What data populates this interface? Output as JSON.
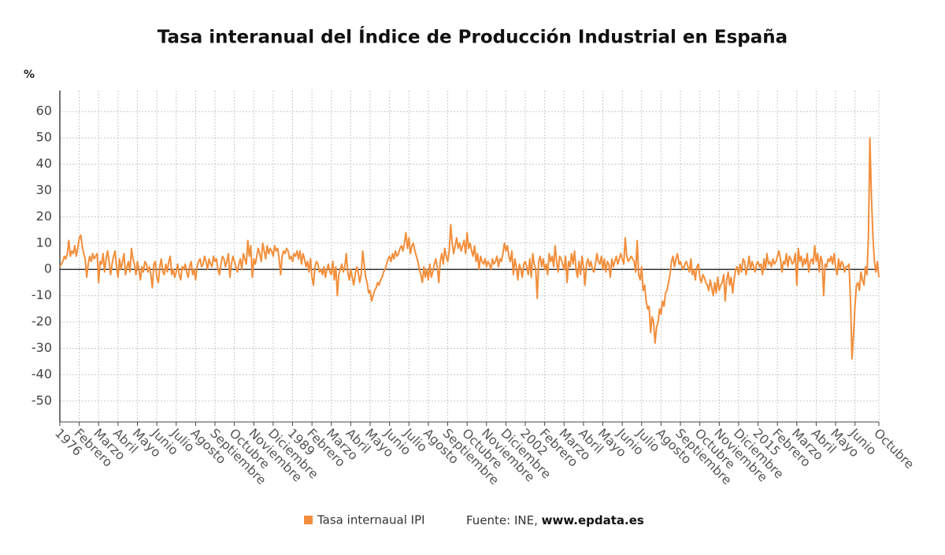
{
  "chart_data": {
    "type": "line",
    "title": "Tasa interanual del Índice de Producción Industrial en España",
    "y_unit": "%",
    "source_label": "Fuente: INE,",
    "source_site": "www.epdata.es",
    "ylim": [
      -58,
      68
    ],
    "yticks": [
      -50,
      -40,
      -30,
      -20,
      -10,
      0,
      10,
      20,
      30,
      40,
      50,
      60
    ],
    "grid": true,
    "legend": "bottom",
    "categories": [
      "1976",
      null,
      null,
      null,
      null,
      null,
      null,
      null,
      null,
      null,
      null,
      null,
      null,
      "Febrero",
      null,
      null,
      null,
      null,
      null,
      null,
      null,
      null,
      null,
      null,
      null,
      null,
      "Marzo",
      null,
      null,
      null,
      null,
      null,
      null,
      null,
      null,
      null,
      null,
      null,
      null,
      "Abril",
      null,
      null,
      null,
      null,
      null,
      null,
      null,
      null,
      null,
      null,
      null,
      null,
      "Mayo",
      null,
      null,
      null,
      null,
      null,
      null,
      null,
      null,
      null,
      null,
      null,
      null,
      "Junio",
      null,
      null,
      null,
      null,
      null,
      null,
      null,
      null,
      null,
      null,
      null,
      null,
      "Julio",
      null,
      null,
      null,
      null,
      null,
      null,
      null,
      null,
      null,
      null,
      null,
      null,
      "Agosto",
      null,
      null,
      null,
      null,
      null,
      null,
      null,
      null,
      null,
      null,
      null,
      null,
      "Septiembre",
      null,
      null,
      null,
      null,
      null,
      null,
      null,
      null,
      null,
      null,
      null,
      null,
      "Octubre",
      null,
      null,
      null,
      null,
      null,
      null,
      null,
      null,
      null,
      null,
      null,
      null,
      "Noviembre",
      null,
      null,
      null,
      null,
      null,
      null,
      null,
      null,
      null,
      null,
      null,
      null,
      "Diciembre",
      null,
      null,
      null,
      null,
      null,
      null,
      null,
      null,
      null,
      null,
      null,
      null,
      "1989",
      null,
      null,
      null,
      null,
      null,
      null,
      null,
      null,
      null,
      null,
      null,
      null,
      "Febrero",
      null,
      null,
      null,
      null,
      null,
      null,
      null,
      null,
      null,
      null,
      null,
      null,
      "Marzo",
      null,
      null,
      null,
      null,
      null,
      null,
      null,
      null,
      null,
      null,
      null,
      null,
      "Abril",
      null,
      null,
      null,
      null,
      null,
      null,
      null,
      null,
      null,
      null,
      null,
      null,
      "Mayo",
      null,
      null,
      null,
      null,
      null,
      null,
      null,
      null,
      null,
      null,
      null,
      null,
      "Junio",
      null,
      null,
      null,
      null,
      null,
      null,
      null,
      null,
      null,
      null,
      null,
      null,
      "Julio",
      null,
      null,
      null,
      null,
      null,
      null,
      null,
      null,
      null,
      null,
      null,
      null,
      "Agosto",
      null,
      null,
      null,
      null,
      null,
      null,
      null,
      null,
      null,
      null,
      null,
      null,
      "Septiembre",
      null,
      null,
      null,
      null,
      null,
      null,
      null,
      null,
      null,
      null,
      null,
      null,
      "Octubre",
      null,
      null,
      null,
      null,
      null,
      null,
      null,
      null,
      null,
      null,
      null,
      null,
      "Noviembre",
      null,
      null,
      null,
      null,
      null,
      null,
      null,
      null,
      null,
      null,
      null,
      null,
      "Diciembre",
      null,
      null,
      null,
      null,
      null,
      null,
      null,
      null,
      null,
      null,
      null,
      null,
      "2002",
      null,
      null,
      null,
      null,
      null,
      null,
      null,
      null,
      null,
      null,
      null,
      null,
      "Febrero",
      null,
      null,
      null,
      null,
      null,
      null,
      null,
      null,
      null,
      null,
      null,
      null,
      "Marzo",
      null,
      null,
      null,
      null,
      null,
      null,
      null,
      null,
      null,
      null,
      null,
      null,
      "Abril",
      null,
      null,
      null,
      null,
      null,
      null,
      null,
      null,
      null,
      null,
      null,
      null,
      "Mayo",
      null,
      null,
      null,
      null,
      null,
      null,
      null,
      null,
      null,
      null,
      null,
      null,
      "Junio",
      null,
      null,
      null,
      null,
      null,
      null,
      null,
      null,
      null,
      null,
      null,
      null,
      "Julio",
      null,
      null,
      null,
      null,
      null,
      null,
      null,
      null,
      null,
      null,
      null,
      null,
      "Agosto",
      null,
      null,
      null,
      null,
      null,
      null,
      null,
      null,
      null,
      null,
      null,
      null,
      "Septiembre",
      null,
      null,
      null,
      null,
      null,
      null,
      null,
      null,
      null,
      null,
      null,
      null,
      "Octubre",
      null,
      null,
      null,
      null,
      null,
      null,
      null,
      null,
      null,
      null,
      null,
      null,
      "Noviembre",
      null,
      null,
      null,
      null,
      null,
      null,
      null,
      null,
      null,
      null,
      null,
      null,
      "Diciembre",
      null,
      null,
      null,
      null,
      null,
      null,
      null,
      null,
      null,
      null,
      null,
      null,
      "2015",
      null,
      null,
      null,
      null,
      null,
      null,
      null,
      null,
      null,
      null,
      null,
      null,
      "Febrero",
      null,
      null,
      null,
      null,
      null,
      null,
      null,
      null,
      null,
      null,
      null,
      null,
      "Marzo",
      null,
      null,
      null,
      null,
      null,
      null,
      null,
      null,
      null,
      null,
      null,
      null,
      "Abril",
      null,
      null,
      null,
      null,
      null,
      null,
      null,
      null,
      null,
      null,
      null,
      null,
      "Mayo",
      null,
      null,
      null,
      null,
      null,
      null,
      null,
      null,
      null,
      null,
      null,
      null,
      "Junio",
      null,
      null,
      null,
      null,
      null,
      null,
      null,
      null,
      null,
      null,
      null,
      null,
      null,
      null,
      null,
      "Octubre"
    ],
    "series": [
      {
        "name": "Tasa internaual IPI",
        "color": "#f28e3b",
        "values": [
          1,
          2,
          3,
          5,
          4,
          6,
          11,
          5,
          7,
          6,
          9,
          5,
          8,
          12,
          13,
          9,
          6,
          4,
          -3,
          2,
          5,
          3,
          6,
          4,
          5,
          6,
          -5,
          3,
          2,
          6,
          -1,
          4,
          7,
          3,
          -2,
          2,
          5,
          7,
          1,
          -3,
          4,
          0,
          3,
          6,
          -2,
          1,
          3,
          -1,
          8,
          4,
          2,
          -2,
          3,
          0,
          -4,
          1,
          -1,
          3,
          2,
          -1,
          1,
          -2,
          -7,
          2,
          3,
          -3,
          -5,
          1,
          4,
          -1,
          -2,
          2,
          -1,
          3,
          5,
          -2,
          0,
          -3,
          -1,
          2,
          -2,
          -4,
          1,
          0,
          2,
          -1,
          -3,
          1,
          3,
          -2,
          0,
          -4,
          1,
          3,
          4,
          1,
          2,
          5,
          3,
          0,
          4,
          2,
          1,
          5,
          3,
          4,
          0,
          -2,
          2,
          5,
          4,
          1,
          3,
          6,
          -3,
          2,
          5,
          3,
          1,
          -1,
          2,
          4,
          0,
          6,
          4,
          2,
          11,
          5,
          9,
          -3,
          4,
          2,
          5,
          8,
          6,
          3,
          10,
          7,
          4,
          9,
          6,
          8,
          7,
          5,
          9,
          7,
          8,
          4,
          -2,
          5,
          7,
          6,
          8,
          7,
          4,
          5,
          3,
          6,
          5,
          7,
          4,
          7,
          2,
          6,
          4,
          1,
          3,
          -1,
          4,
          -3,
          -6,
          1,
          3,
          2,
          -1,
          0,
          -2,
          1,
          -3,
          0,
          2,
          -1,
          -2,
          3,
          -4,
          1,
          -10,
          -2,
          0,
          2,
          -1,
          1,
          6,
          -1,
          -4,
          0,
          -3,
          -6,
          -2,
          1,
          -1,
          -5,
          -2,
          7,
          2,
          -3,
          -5,
          -9,
          -8,
          -12,
          -10,
          -8,
          -7,
          -5,
          -6,
          -4,
          -3,
          -1,
          0,
          2,
          4,
          5,
          3,
          6,
          4,
          7,
          5,
          6,
          8,
          9,
          7,
          10,
          14,
          8,
          12,
          6,
          9,
          10,
          7,
          5,
          3,
          0,
          -2,
          -5,
          1,
          -3,
          0,
          -4,
          2,
          -3,
          -1,
          2,
          4,
          1,
          -5,
          3,
          6,
          2,
          8,
          5,
          3,
          7,
          17,
          10,
          6,
          9,
          12,
          8,
          10,
          7,
          9,
          11,
          6,
          14,
          8,
          10,
          7,
          5,
          9,
          3,
          6,
          0,
          5,
          3,
          2,
          4,
          1,
          3,
          2,
          0,
          4,
          2,
          3,
          5,
          1,
          4,
          3,
          6,
          10,
          7,
          9,
          5,
          3,
          7,
          -2,
          4,
          1,
          -4,
          2,
          0,
          -3,
          2,
          3,
          1,
          -2,
          4,
          -3,
          6,
          2,
          0,
          -11,
          3,
          5,
          1,
          4,
          0,
          2,
          -2,
          6,
          3,
          5,
          1,
          9,
          3,
          -1,
          5,
          4,
          2,
          0,
          5,
          -5,
          3,
          1,
          6,
          2,
          7,
          0,
          -3,
          3,
          -2,
          5,
          1,
          -6,
          2,
          4,
          1,
          3,
          0,
          -1,
          2,
          6,
          3,
          2,
          5,
          0,
          4,
          -1,
          3,
          2,
          -3,
          4,
          1,
          3,
          5,
          2,
          4,
          6,
          4,
          2,
          12,
          5,
          3,
          4,
          5,
          4,
          3,
          -1,
          11,
          -2,
          -4,
          1,
          -8,
          -6,
          -12,
          -15,
          -14,
          -24,
          -18,
          -20,
          -28,
          -22,
          -20,
          -15,
          -17,
          -12,
          -14,
          -9,
          -8,
          -5,
          -2,
          3,
          5,
          1,
          4,
          6,
          2,
          3,
          1,
          0,
          2,
          3,
          1,
          -1,
          4,
          -2,
          0,
          -4,
          1,
          2,
          -3,
          -5,
          -2,
          -3,
          -5,
          -6,
          -8,
          -4,
          -7,
          -10,
          -5,
          -9,
          -3,
          -8,
          -6,
          -5,
          -2,
          -12,
          -4,
          -1,
          -6,
          -3,
          -9,
          -4,
          0,
          1,
          -2,
          2,
          -1,
          4,
          3,
          -2,
          1,
          5,
          0,
          3,
          1,
          -1,
          2,
          3,
          1,
          2,
          -2,
          4,
          0,
          6,
          2,
          3,
          1,
          4,
          2,
          3,
          5,
          7,
          4,
          -1,
          3,
          2,
          6,
          1,
          5,
          4,
          2,
          3,
          6,
          -6,
          8,
          3,
          5,
          1,
          4,
          2,
          6,
          -1,
          3,
          4,
          2,
          9,
          3,
          6,
          -1,
          5,
          3,
          -10,
          2,
          1,
          4,
          3,
          5,
          2,
          6,
          1,
          -2,
          4,
          0,
          3,
          2,
          -1,
          1,
          1,
          2,
          -12,
          -34,
          -25,
          -14,
          -6,
          -5,
          -8,
          -1,
          -4,
          -6,
          1,
          -2,
          12,
          50,
          28,
          13,
          3,
          -1,
          3,
          -3
        ]
      }
    ]
  }
}
